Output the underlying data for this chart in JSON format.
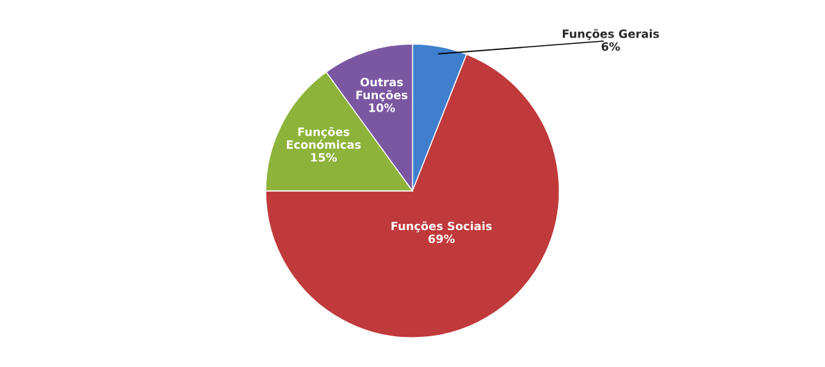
{
  "chart_data": {
    "type": "pie",
    "categories": [
      "Funções Gerais",
      "Funções Sociais",
      "Funções Económicas",
      "Outras Funções"
    ],
    "values": [
      6,
      69,
      15,
      10
    ],
    "value_labels": [
      "6%",
      "69%",
      "15%",
      "10%"
    ],
    "colors": [
      "#3f7fcd",
      "#c0393b",
      "#8db33a",
      "#7b57a1"
    ],
    "legend": false
  }
}
